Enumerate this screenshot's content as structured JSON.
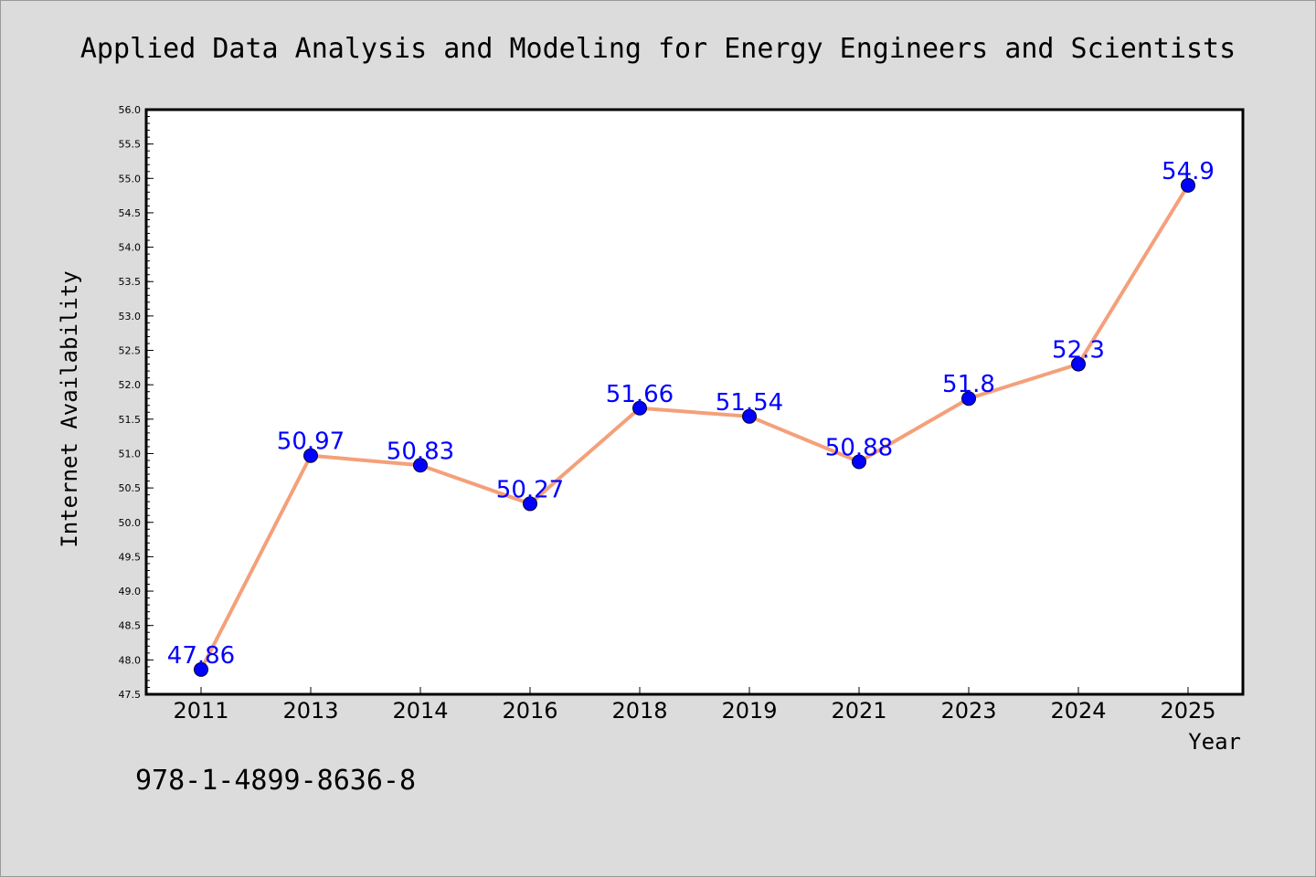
{
  "chart_data": {
    "type": "line",
    "title": "Applied Data Analysis and Modeling for Energy Engineers and Scientists",
    "xlabel": "Year",
    "ylabel": "Internet Availability",
    "categories": [
      "2011",
      "2013",
      "2014",
      "2016",
      "2018",
      "2019",
      "2021",
      "2023",
      "2024",
      "2025"
    ],
    "series": [
      {
        "values": [
          47.86,
          50.97,
          50.83,
          50.27,
          51.66,
          51.54,
          50.88,
          51.8,
          52.3,
          54.9
        ],
        "line_color": "#f4a07a",
        "marker_color": "#0000ff"
      }
    ],
    "data_labels": [
      "47.86",
      "50.97",
      "50.83",
      "50.27",
      "51.66",
      "51.54",
      "50.88",
      "51.8",
      "52.3",
      "54.9"
    ],
    "ylim": [
      47.5,
      56.0
    ],
    "yticks": [
      "47.5",
      "48.0",
      "48.5",
      "49.0",
      "49.5",
      "50.0",
      "50.5",
      "51.0",
      "51.5",
      "52.0",
      "52.5",
      "53.0",
      "53.5",
      "54.0",
      "54.5",
      "55.0",
      "55.5",
      "56.0"
    ],
    "grid": false,
    "label_color": "#0000ff"
  },
  "footer": {
    "isbn": "978-1-4899-8636-8"
  }
}
